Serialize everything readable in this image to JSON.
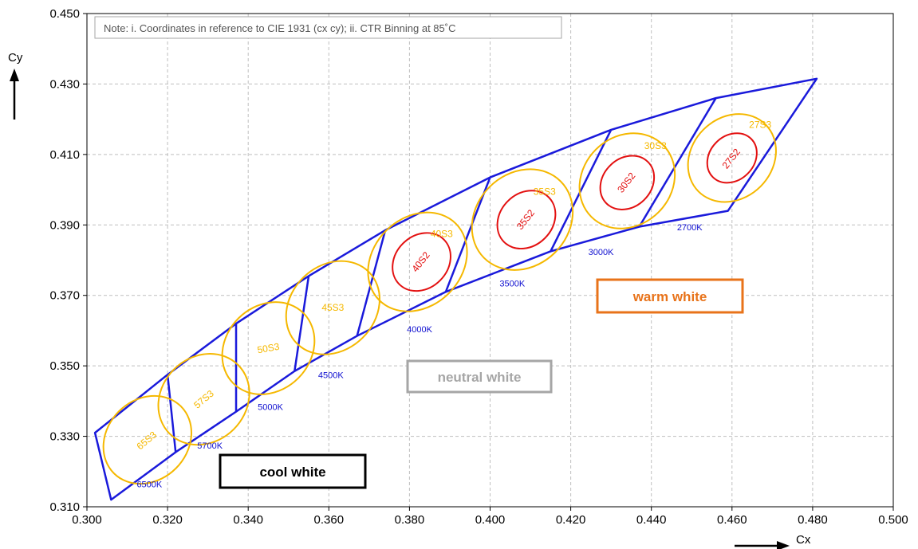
{
  "chart_data": {
    "type": "scatter",
    "title": "",
    "xlabel": "Cx",
    "ylabel": "Cy",
    "xlim": [
      0.3,
      0.5
    ],
    "ylim": [
      0.31,
      0.45
    ],
    "x_ticks": [
      "0.300",
      "0.320",
      "0.340",
      "0.360",
      "0.380",
      "0.400",
      "0.420",
      "0.440",
      "0.460",
      "0.480",
      "0.500"
    ],
    "y_ticks": [
      "0.310",
      "0.330",
      "0.350",
      "0.370",
      "0.390",
      "0.410",
      "0.430",
      "0.450"
    ],
    "grid": true,
    "note": "Note: i. Coordinates in reference to CIE 1931 (cx cy); ii. CTR Binning at 85˚C",
    "colors": {
      "boundary": "#1a1adb",
      "s3_ellipse": "#f5b800",
      "s2_ellipse": "#e31010",
      "cct_text": "#1010d0",
      "cool_box": "#000000",
      "neutral_box": "#a6a6a6",
      "warm_box": "#e8731a",
      "grid": "#bfbfbf"
    },
    "upper_boundary": [
      [
        0.302,
        0.331
      ],
      [
        0.32,
        0.3475
      ],
      [
        0.337,
        0.362
      ],
      [
        0.355,
        0.3755
      ],
      [
        0.374,
        0.3885
      ],
      [
        0.4,
        0.4035
      ],
      [
        0.43,
        0.417
      ],
      [
        0.456,
        0.426
      ],
      [
        0.481,
        0.4315
      ]
    ],
    "lower_boundary": [
      [
        0.306,
        0.312
      ],
      [
        0.322,
        0.3255
      ],
      [
        0.337,
        0.337
      ],
      [
        0.3515,
        0.3485
      ],
      [
        0.367,
        0.3585
      ],
      [
        0.389,
        0.371
      ],
      [
        0.415,
        0.3825
      ],
      [
        0.437,
        0.3895
      ],
      [
        0.459,
        0.394
      ]
    ],
    "cct_labels": [
      {
        "text": "6500K",
        "x": 0.3155,
        "y": 0.3155
      },
      {
        "text": "5700K",
        "x": 0.3305,
        "y": 0.3265
      },
      {
        "text": "5000K",
        "x": 0.3455,
        "y": 0.3375
      },
      {
        "text": "4500K",
        "x": 0.3605,
        "y": 0.3465
      },
      {
        "text": "4000K",
        "x": 0.3825,
        "y": 0.3595
      },
      {
        "text": "3500K",
        "x": 0.4055,
        "y": 0.3725
      },
      {
        "text": "3000K",
        "x": 0.4275,
        "y": 0.3815
      },
      {
        "text": "2700K",
        "x": 0.4495,
        "y": 0.3885
      }
    ],
    "bins": [
      {
        "label": "65S3",
        "cx": 0.315,
        "cy": 0.329,
        "rx": 0.01,
        "ry": 0.0042
      },
      {
        "label": "57S3",
        "cx": 0.329,
        "cy": 0.3405,
        "rx": 0.0105,
        "ry": 0.0043
      },
      {
        "label": "50S3",
        "cx": 0.345,
        "cy": 0.355,
        "rx": 0.0105,
        "ry": 0.0044
      },
      {
        "label": "45S3",
        "cx": 0.361,
        "cy": 0.3665,
        "rx": 0.0105,
        "ry": 0.0045
      },
      {
        "label": "40S3",
        "cx": 0.382,
        "cy": 0.3795,
        "rx": 0.011,
        "ry": 0.0048
      },
      {
        "label": "35S3",
        "cx": 0.408,
        "cy": 0.3915,
        "rx": 0.0115,
        "ry": 0.0048
      },
      {
        "label": "30S3",
        "cx": 0.434,
        "cy": 0.4025,
        "rx": 0.011,
        "ry": 0.0045
      },
      {
        "label": "27S3",
        "cx": 0.46,
        "cy": 0.409,
        "rx": 0.01,
        "ry": 0.0042
      },
      {
        "label": "40S2",
        "cx": 0.383,
        "cy": 0.3795,
        "rx": 0.0065,
        "ry": 0.0028
      },
      {
        "label": "35S2",
        "cx": 0.409,
        "cy": 0.3915,
        "rx": 0.0065,
        "ry": 0.0028
      },
      {
        "label": "30S2",
        "cx": 0.434,
        "cy": 0.402,
        "rx": 0.006,
        "ry": 0.0026
      },
      {
        "label": "27S2",
        "cx": 0.46,
        "cy": 0.409,
        "rx": 0.0055,
        "ry": 0.0024
      }
    ],
    "bin_label_positions": [
      {
        "label": "65S3",
        "x": 0.3148,
        "y": 0.3288,
        "rotate": -40,
        "color": "s3"
      },
      {
        "label": "57S3",
        "x": 0.329,
        "y": 0.3405,
        "rotate": -40,
        "color": "s3"
      },
      {
        "label": "50S3",
        "x": 0.345,
        "y": 0.355,
        "rotate": -10,
        "color": "s3"
      },
      {
        "label": "45S3",
        "x": 0.361,
        "y": 0.3665,
        "rotate": 0,
        "color": "s3"
      },
      {
        "label": "40S3",
        "x": 0.388,
        "y": 0.3875,
        "rotate": 0,
        "color": "s3"
      },
      {
        "label": "35S3",
        "x": 0.4135,
        "y": 0.3995,
        "rotate": 0,
        "color": "s3"
      },
      {
        "label": "30S3",
        "x": 0.441,
        "y": 0.4125,
        "rotate": 0,
        "color": "s3"
      },
      {
        "label": "27S3",
        "x": 0.467,
        "y": 0.4185,
        "rotate": 0,
        "color": "s3"
      },
      {
        "label": "40S2",
        "x": 0.3828,
        "y": 0.3795,
        "rotate": -52,
        "color": "s2"
      },
      {
        "label": "35S2",
        "x": 0.4088,
        "y": 0.3915,
        "rotate": -52,
        "color": "s2"
      },
      {
        "label": "30S2",
        "x": 0.4338,
        "y": 0.402,
        "rotate": -52,
        "color": "s2"
      },
      {
        "label": "27S2",
        "x": 0.4598,
        "y": 0.4088,
        "rotate": -52,
        "color": "s2"
      }
    ],
    "regions": [
      {
        "text": "cool white",
        "color": "cool_box"
      },
      {
        "text": "neutral white",
        "color": "neutral_box"
      },
      {
        "text": "warm white",
        "color": "warm_box"
      }
    ]
  }
}
